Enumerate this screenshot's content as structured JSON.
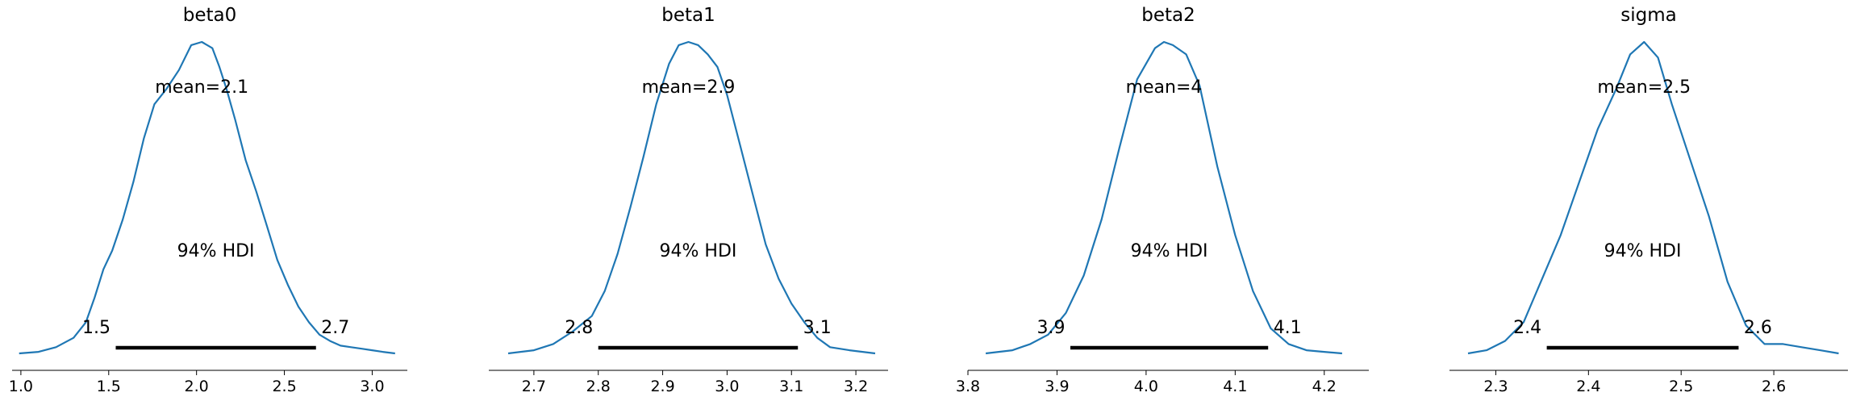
{
  "chart_data": [
    {
      "type": "area",
      "title": "beta0",
      "mean_label": "mean=2.1",
      "hdi_label": "94% HDI",
      "hdi": [
        1.54,
        2.68
      ],
      "hdi_low_label": "1.5",
      "hdi_high_label": "2.7",
      "xlim": [
        0.95,
        3.2
      ],
      "xticks": [
        1.0,
        1.5,
        2.0,
        2.5,
        3.0
      ],
      "xtick_labels": [
        "1.0",
        "1.5",
        "2.0",
        "2.5",
        "3.0"
      ],
      "density": {
        "x": [
          0.99,
          1.1,
          1.2,
          1.3,
          1.37,
          1.42,
          1.47,
          1.52,
          1.58,
          1.64,
          1.7,
          1.76,
          1.83,
          1.9,
          1.97,
          2.03,
          2.09,
          2.13,
          2.17,
          2.22,
          2.28,
          2.34,
          2.4,
          2.46,
          2.52,
          2.58,
          2.64,
          2.7,
          2.76,
          2.82,
          2.88,
          2.94,
          3.0,
          3.06,
          3.13
        ],
        "y": [
          0.0,
          0.005,
          0.02,
          0.05,
          0.1,
          0.18,
          0.27,
          0.33,
          0.43,
          0.55,
          0.69,
          0.8,
          0.85,
          0.91,
          0.99,
          1.0,
          0.98,
          0.92,
          0.85,
          0.75,
          0.62,
          0.52,
          0.41,
          0.3,
          0.22,
          0.15,
          0.1,
          0.06,
          0.04,
          0.025,
          0.02,
          0.015,
          0.01,
          0.005,
          0.0
        ]
      }
    },
    {
      "type": "area",
      "title": "beta1",
      "mean_label": "mean=2.9",
      "hdi_label": "94% HDI",
      "hdi": [
        2.8,
        3.11
      ],
      "hdi_low_label": "2.8",
      "hdi_high_label": "3.1",
      "xlim": [
        2.63,
        3.25
      ],
      "xticks": [
        2.7,
        2.8,
        2.9,
        3.0,
        3.1,
        3.2
      ],
      "xtick_labels": [
        "2.7",
        "2.8",
        "2.9",
        "3.0",
        "3.1",
        "3.2"
      ],
      "density": {
        "x": [
          2.66,
          2.7,
          2.73,
          2.76,
          2.79,
          2.81,
          2.83,
          2.85,
          2.87,
          2.89,
          2.91,
          2.925,
          2.94,
          2.955,
          2.97,
          2.985,
          3.0,
          3.02,
          3.04,
          3.06,
          3.08,
          3.1,
          3.12,
          3.14,
          3.16,
          3.19,
          3.23
        ],
        "y": [
          0.0,
          0.01,
          0.03,
          0.07,
          0.12,
          0.2,
          0.32,
          0.47,
          0.63,
          0.8,
          0.93,
          0.99,
          1.0,
          0.99,
          0.96,
          0.92,
          0.83,
          0.67,
          0.51,
          0.35,
          0.24,
          0.16,
          0.1,
          0.05,
          0.02,
          0.01,
          0.0
        ]
      }
    },
    {
      "type": "area",
      "title": "beta2",
      "mean_label": "mean=4",
      "hdi_label": "94% HDI",
      "hdi": [
        3.915,
        4.137
      ],
      "hdi_low_label": "3.9",
      "hdi_high_label": "4.1",
      "xlim": [
        3.8,
        4.25
      ],
      "xticks": [
        3.8,
        3.9,
        4.0,
        4.1,
        4.2
      ],
      "xtick_labels": [
        "3.8",
        "3.9",
        "4.0",
        "4.1",
        "4.2"
      ],
      "density": {
        "x": [
          3.82,
          3.85,
          3.87,
          3.89,
          3.91,
          3.93,
          3.95,
          3.97,
          3.99,
          4.01,
          4.02,
          4.03,
          4.045,
          4.06,
          4.08,
          4.1,
          4.12,
          4.14,
          4.16,
          4.18,
          4.2,
          4.22
        ],
        "y": [
          0.0,
          0.01,
          0.03,
          0.06,
          0.13,
          0.25,
          0.43,
          0.66,
          0.88,
          0.98,
          1.0,
          0.99,
          0.96,
          0.86,
          0.6,
          0.38,
          0.2,
          0.08,
          0.03,
          0.01,
          0.005,
          0.0
        ]
      }
    },
    {
      "type": "area",
      "title": "sigma",
      "mean_label": "mean=2.5",
      "hdi_label": "94% HDI",
      "hdi": [
        2.355,
        2.562
      ],
      "hdi_low_label": "2.4",
      "hdi_high_label": "2.6",
      "xlim": [
        2.25,
        2.68
      ],
      "xticks": [
        2.3,
        2.4,
        2.5,
        2.6
      ],
      "xtick_labels": [
        "2.3",
        "2.4",
        "2.5",
        "2.6"
      ],
      "density": {
        "x": [
          2.27,
          2.29,
          2.31,
          2.33,
          2.35,
          2.37,
          2.39,
          2.41,
          2.43,
          2.445,
          2.46,
          2.475,
          2.49,
          2.51,
          2.53,
          2.55,
          2.57,
          2.59,
          2.61,
          2.63,
          2.65,
          2.67
        ],
        "y": [
          0.0,
          0.01,
          0.04,
          0.1,
          0.24,
          0.38,
          0.55,
          0.72,
          0.85,
          0.96,
          1.0,
          0.95,
          0.8,
          0.62,
          0.44,
          0.23,
          0.09,
          0.03,
          0.03,
          0.02,
          0.01,
          0.0
        ]
      }
    }
  ]
}
